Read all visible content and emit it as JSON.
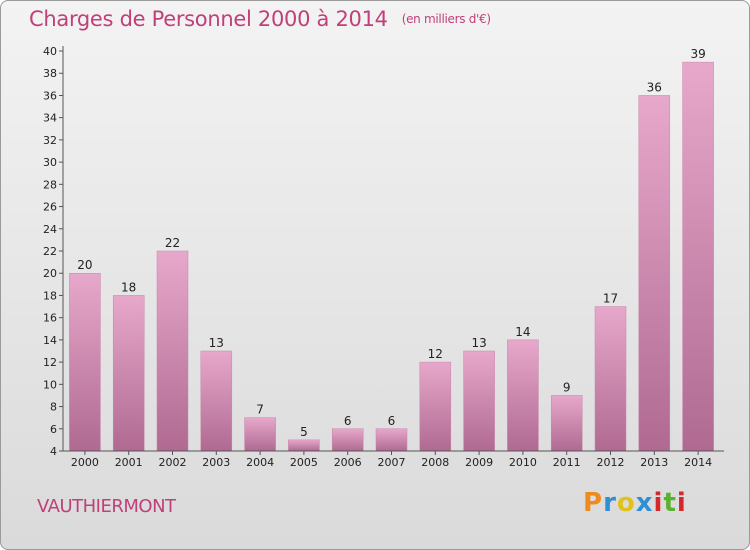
{
  "chart_data": {
    "type": "bar",
    "title": "Charges de Personnel 2000 à 2014",
    "subtitle": "(en milliers d'€)",
    "categories": [
      "2000",
      "2001",
      "2002",
      "2003",
      "2004",
      "2005",
      "2006",
      "2007",
      "2008",
      "2009",
      "2010",
      "2011",
      "2012",
      "2013",
      "2014"
    ],
    "values": [
      20,
      18,
      22,
      13,
      7,
      5,
      6,
      6,
      12,
      13,
      14,
      9,
      17,
      36,
      39
    ],
    "xlabel": "",
    "ylabel": "",
    "ylim": [
      4,
      40
    ],
    "yticks": [
      4,
      6,
      8,
      10,
      12,
      14,
      16,
      18,
      20,
      22,
      24,
      26,
      28,
      30,
      32,
      34,
      36,
      38,
      40
    ],
    "grid": false,
    "legend": "none",
    "bar_color": "#d77fae"
  },
  "commune": "VAUTHIERMONT",
  "logo": {
    "letters": [
      "P",
      "r",
      "o",
      "x",
      "i",
      "t",
      "i"
    ],
    "colors": [
      "#f08a1c",
      "#2f8fd6",
      "#e0c21a",
      "#2f8fd6",
      "#d6282b",
      "#59b130",
      "#d6282b"
    ]
  }
}
